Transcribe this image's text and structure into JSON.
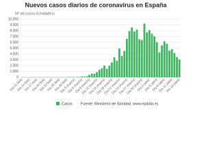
{
  "chart_data": {
    "type": "bar",
    "title": "Nuevos casos diarios de coronavirus en España",
    "subtitle": "Nº de casos (Unidades)",
    "categories": [
      "Día 11 (feb)",
      null,
      null,
      "Día 14 (feb)",
      null,
      null,
      "Día 17 (feb)",
      null,
      null,
      "Día 20 (feb)",
      null,
      null,
      "Día 23 (feb)",
      null,
      null,
      "Día 26 (feb)",
      null,
      null,
      "Día 29 (feb)",
      null,
      null,
      "Día 3 (marzo)",
      null,
      null,
      "Día 6 (marzo)",
      null,
      null,
      "Día 9 (marzo)",
      null,
      null,
      "Día 12 (marzo)",
      null,
      null,
      "Día 15 (marzo)",
      null,
      null,
      "Día 18 (marzo)",
      null,
      null,
      "Día 21 (marzo)",
      null,
      null,
      "Día 24 (marzo)",
      null,
      null,
      "Día 27 (marzo)",
      null,
      null,
      "Día 30 (marzo)",
      null,
      null,
      "Día 2 (abril)",
      null,
      null,
      "Día 5 (abril)",
      null,
      null,
      "Día 8 (abril)",
      null,
      null,
      "Día 11 (abril)",
      null,
      null,
      "Día 14 (abril)"
    ],
    "series": [
      {
        "name": "Casos",
        "color": "#3cb55e",
        "values": [
          0,
          0,
          0,
          0,
          0,
          0,
          0,
          0,
          0,
          0,
          0,
          0,
          0,
          0,
          2,
          3,
          5,
          17,
          13,
          39,
          36,
          45,
          57,
          37,
          141,
          100,
          173,
          400,
          622,
          582,
          869,
          1266,
          1522,
          2000,
          1438,
          1987,
          2538,
          3431,
          2833,
          4946,
          3646,
          4517,
          6584,
          7937,
          8578,
          7871,
          8189,
          6549,
          6398,
          9222,
          7719,
          8102,
          7472,
          7026,
          6023,
          4273,
          5478,
          6180,
          5756,
          4576,
          4830,
          4167,
          3477,
          3045
        ]
      }
    ],
    "ylim": [
      0,
      10000
    ],
    "yticks": [
      0,
      {
        "value": 1000,
        "label": "1.000"
      },
      {
        "value": 2000,
        "label": "2.000"
      },
      {
        "value": 3000,
        "label": "3.000"
      },
      {
        "value": 4000,
        "label": "4.000"
      },
      {
        "value": 5000,
        "label": "5.000"
      },
      {
        "value": 6000,
        "label": "6.000"
      },
      {
        "value": 7000,
        "label": "7.000"
      },
      {
        "value": 8000,
        "label": "8.000"
      },
      {
        "value": 9000,
        "label": "9.000"
      },
      {
        "value": 10000,
        "label": "10.000"
      }
    ],
    "grid": true,
    "source": "Fuente: Ministerio de Sanidad, www.epdata.es"
  }
}
